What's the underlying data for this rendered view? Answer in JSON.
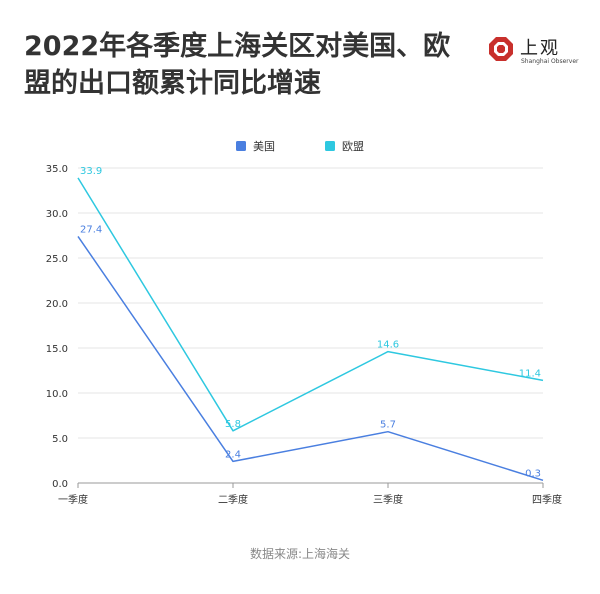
{
  "header": {
    "title": "2022年各季度上海关区对美国、欧盟的出口额累计同比增速"
  },
  "logo": {
    "name": "上观",
    "subtitle": "Shanghai Observer"
  },
  "source": "数据来源:上海海关",
  "colors": {
    "us": "#4a7fe0",
    "eu": "#2ec8e0",
    "grid": "#e6e6e6",
    "axis": "#999999"
  },
  "chart_data": {
    "type": "line",
    "title": "2022年各季度上海关区对美国、欧盟的出口额累计同比增速",
    "categories": [
      "一季度",
      "二季度",
      "三季度",
      "四季度"
    ],
    "series": [
      {
        "name": "美国",
        "color": "#4a7fe0",
        "values": [
          27.4,
          2.4,
          5.7,
          0.3
        ]
      },
      {
        "name": "欧盟",
        "color": "#2ec8e0",
        "values": [
          33.9,
          5.8,
          14.6,
          11.4
        ]
      }
    ],
    "yticks": [
      "0.0",
      "5.0",
      "10.0",
      "15.0",
      "20.0",
      "25.0",
      "30.0",
      "35.0"
    ],
    "ylim": [
      0,
      35
    ],
    "grid": true,
    "legend": "top-center",
    "xlabel": "",
    "ylabel": ""
  }
}
